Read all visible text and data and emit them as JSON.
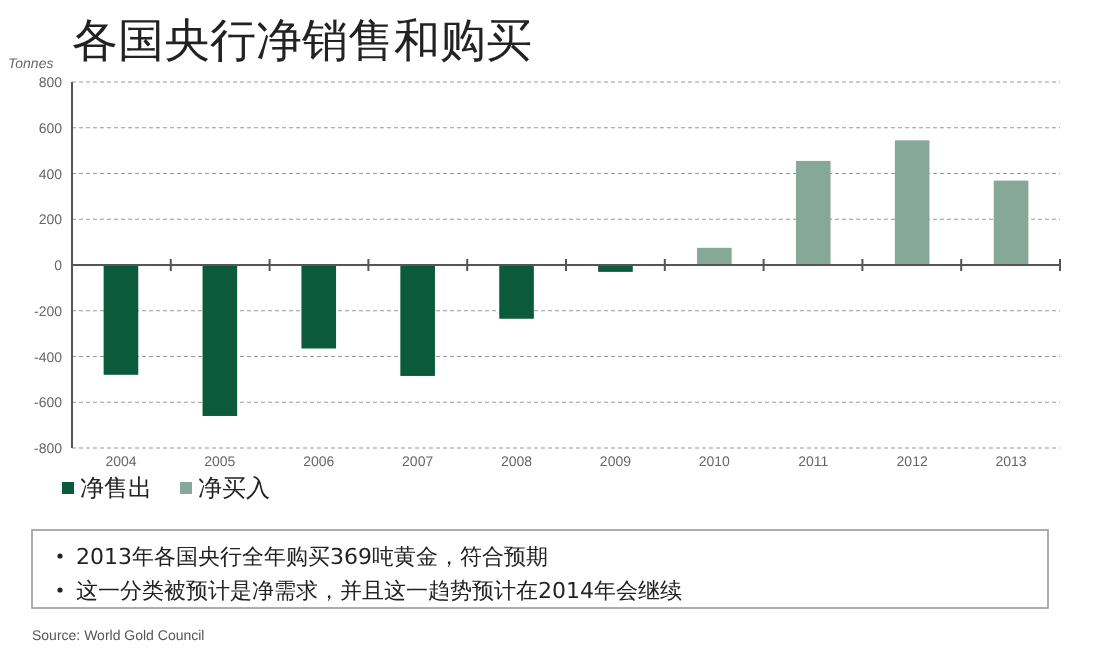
{
  "chart_data": {
    "type": "bar",
    "title": "各国央行净销售和购买",
    "ylabel": "Tonnes",
    "categories": [
      "2004",
      "2005",
      "2006",
      "2007",
      "2008",
      "2009",
      "2010",
      "2011",
      "2012",
      "2013"
    ],
    "series": [
      {
        "name": "净售出",
        "color": "#0b5a3c",
        "values": [
          -480,
          -660,
          -365,
          -485,
          -235,
          -30,
          null,
          null,
          null,
          null
        ]
      },
      {
        "name": "净买入",
        "color": "#86a898",
        "values": [
          null,
          null,
          null,
          null,
          null,
          null,
          75,
          455,
          545,
          369
        ]
      }
    ],
    "ylim": [
      -800,
      800
    ],
    "yticks": [
      -800,
      -600,
      -400,
      -200,
      0,
      200,
      400,
      600,
      800
    ],
    "grid": "y",
    "legend": "bottom left",
    "annotations": [
      "2013年各国央行全年购买369吨黄金，符合预期",
      "这一分类被预计是净需求，并且这一趋势预计在2014年会继续",
      "Source: World Gold Council"
    ]
  }
}
